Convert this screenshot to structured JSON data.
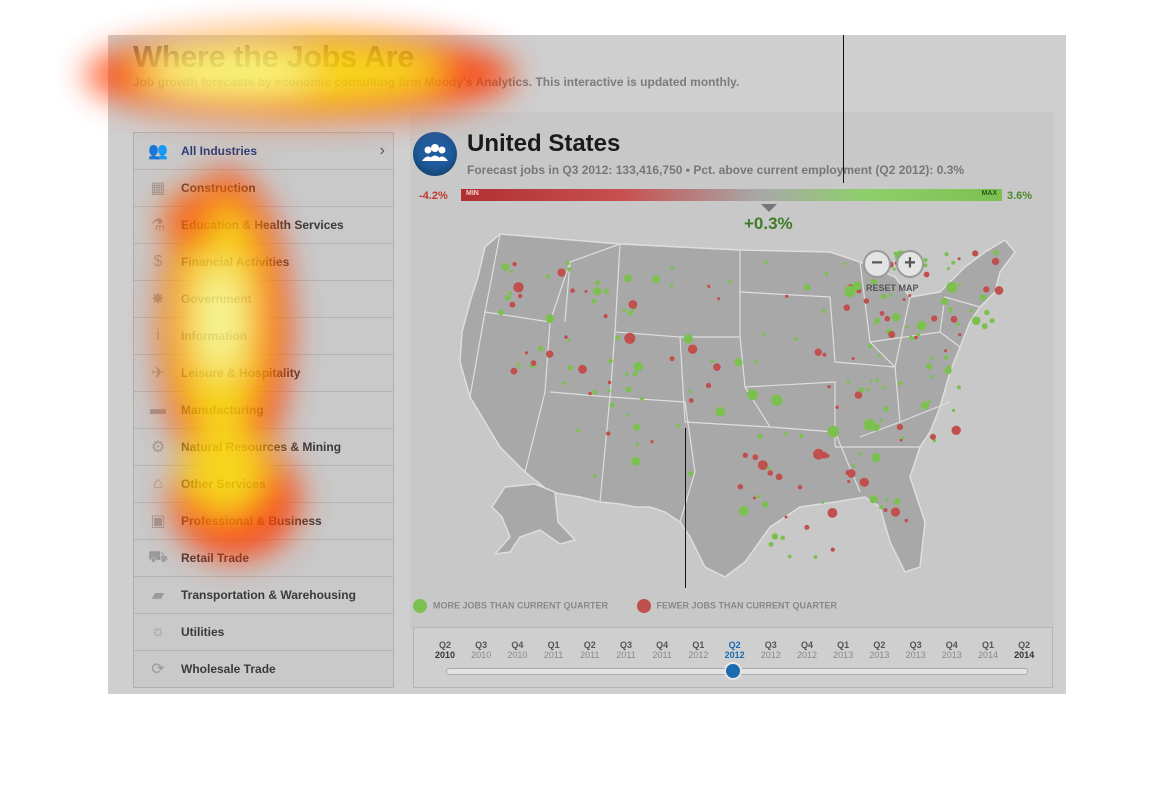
{
  "header": {
    "title": "Where the Jobs Are",
    "subtitle": "Job growth forecasts by economic consulting firm Moody's Analytics. This interactive is updated monthly."
  },
  "sidebar": {
    "items": [
      {
        "label": "All Industries",
        "icon": "people-icon"
      },
      {
        "label": "Construction",
        "icon": "barricade-icon"
      },
      {
        "label": "Education & Health Services",
        "icon": "flask-icon"
      },
      {
        "label": "Financial Activities",
        "icon": "dollar-icon"
      },
      {
        "label": "Government",
        "icon": "star-badge-icon"
      },
      {
        "label": "Information",
        "icon": "info-icon"
      },
      {
        "label": "Leisure & Hospitality",
        "icon": "airplane-icon"
      },
      {
        "label": "Manufacturing",
        "icon": "car-icon"
      },
      {
        "label": "Natural Resources & Mining",
        "icon": "gear-icon"
      },
      {
        "label": "Other Services",
        "icon": "house-icon"
      },
      {
        "label": "Professional & Business",
        "icon": "briefcase-icon"
      },
      {
        "label": "Retail Trade",
        "icon": "cart-icon"
      },
      {
        "label": "Transportation & Warehousing",
        "icon": "truck-icon"
      },
      {
        "label": "Utilities",
        "icon": "lightbulb-icon"
      },
      {
        "label": "Wholesale Trade",
        "icon": "recycle-icon"
      }
    ]
  },
  "region": {
    "name": "United States",
    "stats": "Forecast jobs in Q3 2012: 133,416,750 • Pct. above current employment (Q2 2012): 0.3%",
    "min_value": "-4.2%",
    "max_value": "3.6%",
    "min_tag": "MIN",
    "max_tag": "MAX",
    "current_value": "+0.3%",
    "pointer_fraction": 0.57
  },
  "map": {
    "zoom_out_label": "−",
    "zoom_in_label": "+",
    "reset_label": "RESET MAP",
    "colors": {
      "more": "#7cc050",
      "fewer": "#c0504d",
      "land": "#a8a8a8",
      "border": "#dedede"
    }
  },
  "legend": {
    "more_label": "MORE JOBS THAN CURRENT QUARTER",
    "fewer_label": "FEWER JOBS THAN CURRENT QUARTER"
  },
  "timeline": {
    "ticks": [
      {
        "q": "Q2",
        "y": "2010"
      },
      {
        "q": "Q3",
        "y": "2010"
      },
      {
        "q": "Q4",
        "y": "2010"
      },
      {
        "q": "Q1",
        "y": "2011"
      },
      {
        "q": "Q2",
        "y": "2011"
      },
      {
        "q": "Q3",
        "y": "2011"
      },
      {
        "q": "Q4",
        "y": "2011"
      },
      {
        "q": "Q1",
        "y": "2012"
      },
      {
        "q": "Q2",
        "y": "2012"
      },
      {
        "q": "Q3",
        "y": "2012"
      },
      {
        "q": "Q4",
        "y": "2012"
      },
      {
        "q": "Q1",
        "y": "2013"
      },
      {
        "q": "Q2",
        "y": "2013"
      },
      {
        "q": "Q3",
        "y": "2013"
      },
      {
        "q": "Q4",
        "y": "2013"
      },
      {
        "q": "Q1",
        "y": "2014"
      },
      {
        "q": "Q2",
        "y": "2014"
      }
    ],
    "selected_index": 8
  }
}
